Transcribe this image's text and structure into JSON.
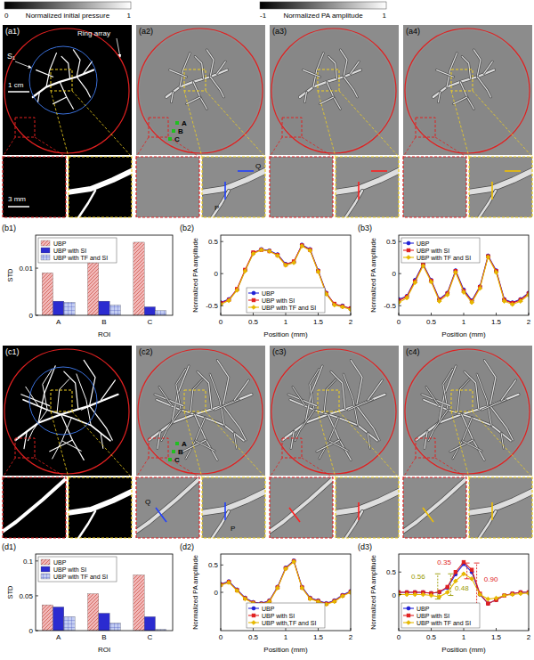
{
  "figure": {
    "colorbars": [
      {
        "min_label": "0",
        "title": "Normalized initial pressure",
        "max_label": "1"
      },
      {
        "min_label": "-1",
        "title": "Normalized PA amplitude",
        "max_label": "1"
      }
    ],
    "image_rows": [
      {
        "panels": [
          "(a1)",
          "(a2)",
          "(a3)",
          "(a4)"
        ],
        "ring_label": "Ring array",
        "source_label": "S₁",
        "scale_bar": "1 cm",
        "inset_scale_bar": "3 mm",
        "roi_labels": [
          "A",
          "B",
          "C"
        ],
        "profile_labels": [
          "P",
          "Q"
        ]
      },
      {
        "panels": [
          "(c1)",
          "(c2)",
          "(c3)",
          "(c4)"
        ],
        "roi_labels": [
          "A",
          "B",
          "C"
        ],
        "profile_labels": [
          "Q",
          "P"
        ]
      }
    ]
  },
  "chart_data": [
    {
      "type": "bar",
      "title": "(b1)",
      "categories": [
        "A",
        "B",
        "C"
      ],
      "x_label": "ROI",
      "y_label": "STD",
      "ylim": [
        0,
        0.017
      ],
      "yticks": [
        0,
        0.01
      ],
      "legend": "upper left",
      "series": [
        {
          "name": "UBP",
          "color": "#f2b8b8",
          "values": [
            0.009,
            0.012,
            0.0155
          ]
        },
        {
          "name": "UBP with SI",
          "color": "#2b2bd0",
          "values": [
            0.003,
            0.003,
            0.0018
          ]
        },
        {
          "name": "UBP with TF and SI",
          "color": "#c3cdf2",
          "values": [
            0.0028,
            0.0022,
            0.001
          ]
        }
      ]
    },
    {
      "type": "line",
      "title": "(b2)",
      "x": [
        0,
        0.125,
        0.25,
        0.375,
        0.5,
        0.625,
        0.75,
        0.875,
        1,
        1.125,
        1.25,
        1.375,
        1.5,
        1.625,
        1.75,
        1.875,
        2
      ],
      "x_label": "Position (mm)",
      "y_label": "Normalized PA amplitude",
      "xlim": [
        0,
        2
      ],
      "xticks": [
        0,
        0.5,
        1,
        1.5,
        2
      ],
      "ylim": [
        -0.65,
        0.6
      ],
      "yticks": [
        -0.5,
        0,
        0.5
      ],
      "legend": "lower center",
      "series": [
        {
          "name": "UBP",
          "color": "#1f1fd6",
          "marker": "circle",
          "values": [
            -0.45,
            -0.4,
            -0.25,
            0.05,
            0.32,
            0.38,
            0.36,
            0.3,
            0.15,
            0.18,
            0.45,
            0.38,
            0.05,
            -0.3,
            -0.48,
            -0.5,
            -0.55
          ]
        },
        {
          "name": "UBP with SI",
          "color": "#e02020",
          "marker": "square",
          "values": [
            -0.46,
            -0.41,
            -0.24,
            0.06,
            0.33,
            0.37,
            0.35,
            0.29,
            0.14,
            0.19,
            0.44,
            0.37,
            0.04,
            -0.31,
            -0.47,
            -0.51,
            -0.54
          ]
        },
        {
          "name": "UBP with TF and SI",
          "color": "#e6b800",
          "marker": "diamond",
          "values": [
            -0.48,
            -0.42,
            -0.26,
            0.04,
            0.31,
            0.37,
            0.35,
            0.28,
            0.13,
            0.17,
            0.43,
            0.36,
            0.03,
            -0.32,
            -0.49,
            -0.52,
            -0.56
          ]
        }
      ]
    },
    {
      "type": "line",
      "title": "(b3)",
      "x": [
        0,
        0.125,
        0.25,
        0.375,
        0.5,
        0.625,
        0.75,
        0.875,
        1,
        1.125,
        1.25,
        1.375,
        1.5,
        1.625,
        1.75,
        1.875,
        2
      ],
      "x_label": "Position (mm)",
      "y_label": "Normalized PA amplitude",
      "xlim": [
        0,
        2
      ],
      "xticks": [
        0,
        0.5,
        1,
        1.5,
        2
      ],
      "ylim": [
        -0.65,
        0.6
      ],
      "yticks": [
        -0.5,
        0,
        0.5
      ],
      "legend": "upper left",
      "series": [
        {
          "name": "UBP",
          "color": "#1f1fd6",
          "marker": "circle",
          "values": [
            -0.4,
            -0.35,
            -0.1,
            0.15,
            -0.1,
            -0.4,
            -0.3,
            0.05,
            -0.25,
            -0.42,
            -0.2,
            0.28,
            0.05,
            -0.4,
            -0.45,
            -0.4,
            -0.3
          ]
        },
        {
          "name": "UBP with SI",
          "color": "#e02020",
          "marker": "square",
          "values": [
            -0.42,
            -0.36,
            -0.12,
            0.14,
            -0.11,
            -0.41,
            -0.31,
            0.04,
            -0.27,
            -0.43,
            -0.21,
            0.27,
            0.04,
            -0.41,
            -0.46,
            -0.41,
            -0.31
          ]
        },
        {
          "name": "UBP with TF and SI",
          "color": "#e6b800",
          "marker": "diamond",
          "values": [
            -0.45,
            -0.38,
            -0.14,
            0.12,
            -0.13,
            -0.43,
            -0.33,
            0.02,
            -0.29,
            -0.45,
            -0.23,
            0.26,
            0.02,
            -0.43,
            -0.48,
            -0.43,
            -0.33
          ]
        }
      ]
    },
    {
      "type": "bar",
      "title": "(d1)",
      "categories": [
        "A",
        "B",
        "C"
      ],
      "x_label": "ROI",
      "y_label": "STD",
      "ylim": [
        0,
        0.11
      ],
      "yticks": [
        0,
        0.05,
        0.1
      ],
      "legend": "upper left",
      "series": [
        {
          "name": "UBP",
          "color": "#f2b8b8",
          "values": [
            0.037,
            0.053,
            0.08
          ]
        },
        {
          "name": "UBP with SI",
          "color": "#2b2bd0",
          "values": [
            0.034,
            0.025,
            0.02
          ]
        },
        {
          "name": "UBP with TF and SI",
          "color": "#c3cdf2",
          "values": [
            0.02,
            0.011,
            0.002
          ]
        }
      ]
    },
    {
      "type": "line",
      "title": "(d2)",
      "x": [
        0,
        0.125,
        0.25,
        0.375,
        0.5,
        0.625,
        0.75,
        0.875,
        1,
        1.125,
        1.25,
        1.375,
        1.5,
        1.625,
        1.75,
        1.875,
        2
      ],
      "x_label": "Position (mm)",
      "y_label": "Normalized PA amplitude",
      "xlim": [
        0,
        2
      ],
      "xticks": [
        0,
        0.5,
        1,
        1.5,
        2
      ],
      "ylim": [
        -0.7,
        0.7
      ],
      "yticks": [
        0,
        0.5
      ],
      "legend": "lower center",
      "series": [
        {
          "name": "UBP",
          "color": "#1f1fd6",
          "marker": "circle",
          "values": [
            0.15,
            0.2,
            0.05,
            -0.1,
            -0.18,
            -0.2,
            -0.15,
            0.1,
            0.45,
            0.58,
            0.1,
            -0.1,
            -0.15,
            -0.2,
            -0.15,
            -0.05,
            0.02
          ]
        },
        {
          "name": "UBP with SI",
          "color": "#e02020",
          "marker": "square",
          "values": [
            0.14,
            0.19,
            0.04,
            -0.11,
            -0.19,
            -0.21,
            -0.16,
            0.09,
            0.44,
            0.57,
            0.09,
            -0.11,
            -0.16,
            -0.21,
            -0.16,
            -0.06,
            0.01
          ]
        },
        {
          "name": "UBP with,TF and SI",
          "color": "#e6b800",
          "marker": "diamond",
          "values": [
            0.13,
            0.18,
            0.03,
            -0.12,
            -0.2,
            -0.22,
            -0.17,
            0.08,
            0.43,
            0.56,
            0.08,
            -0.12,
            -0.17,
            -0.22,
            -0.17,
            -0.07,
            0
          ]
        }
      ]
    },
    {
      "type": "line",
      "title": "(d3)",
      "x": [
        0,
        0.125,
        0.25,
        0.375,
        0.5,
        0.625,
        0.75,
        0.875,
        1,
        1.125,
        1.25,
        1.375,
        1.5,
        1.625,
        1.75,
        1.875,
        2
      ],
      "x_label": "Position (mm)",
      "y_label": "Normalized PA amplitude",
      "xlim": [
        0,
        2
      ],
      "xticks": [
        0,
        0.5,
        1,
        1.5,
        2
      ],
      "ylim": [
        -0.8,
        0.9
      ],
      "yticks": [
        0,
        0.5
      ],
      "legend": "lower left",
      "series": [
        {
          "name": "UBP",
          "color": "#1f1fd6",
          "marker": "circle",
          "values": [
            0.05,
            0.05,
            0.05,
            0.05,
            0.03,
            0.05,
            0.15,
            0.45,
            0.68,
            0.5,
            0,
            -0.2,
            -0.12,
            -0.02,
            0.02,
            0.05,
            0.05
          ]
        },
        {
          "name": "UBP with SI",
          "color": "#e02020",
          "marker": "square",
          "values": [
            0.05,
            0.05,
            0.05,
            0.05,
            0.03,
            0.06,
            0.17,
            0.5,
            0.72,
            0.55,
            0.02,
            -0.2,
            -0.12,
            -0.02,
            0.02,
            0.05,
            0.05
          ]
        },
        {
          "name": "UBP with TF and SI",
          "color": "#e6b800",
          "marker": "diamond",
          "values": [
            0,
            0,
            0,
            0,
            -0.02,
            -0.05,
            0.05,
            0.3,
            0.46,
            0.35,
            0,
            -0.1,
            -0.08,
            -0.02,
            0,
            0.02,
            0.03
          ]
        }
      ],
      "annotations": [
        {
          "text": "0.56",
          "color": "#9a9a00",
          "x": 0.6,
          "from": -0.1,
          "to": 0.46,
          "text_x": 0.3,
          "text_y": 0.4
        },
        {
          "text": "0.35",
          "color": "#e02020",
          "x": 1.05,
          "from": 0.35,
          "to": 0.7,
          "text_x": 0.7,
          "text_y": 0.72
        },
        {
          "text": "0.48",
          "color": "#9a9a00",
          "x": 0.8,
          "from": -0.02,
          "to": 0.46,
          "text_x": 0.97,
          "text_y": 0.15
        },
        {
          "text": "0.90",
          "color": "#e02020",
          "x": 1.2,
          "from": -0.2,
          "to": 0.7,
          "text_x": 1.42,
          "text_y": 0.35
        }
      ]
    }
  ]
}
